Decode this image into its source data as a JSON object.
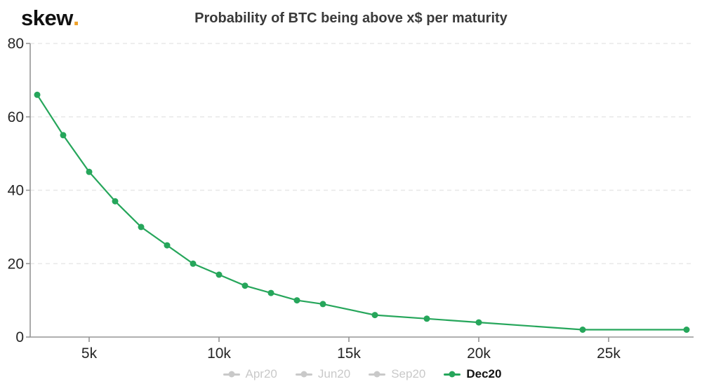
{
  "header": {
    "logo_text": "skew",
    "logo_dot": ".",
    "title": "Probability of BTC being above x$ per maturity"
  },
  "chart_data": {
    "type": "line",
    "title": "Probability of BTC being above x$ per maturity",
    "xlabel": "",
    "ylabel": "",
    "grid": "horizontal-dashed",
    "legend_position": "bottom-center",
    "x_axis": {
      "min": 2730,
      "max": 28270,
      "ticks": [
        {
          "value": 5000,
          "label": "5k"
        },
        {
          "value": 10000,
          "label": "10k"
        },
        {
          "value": 15000,
          "label": "15k"
        },
        {
          "value": 20000,
          "label": "20k"
        },
        {
          "value": 25000,
          "label": "25k"
        }
      ]
    },
    "y_axis": {
      "min": 0,
      "max": 80,
      "ticks": [
        {
          "value": 0,
          "label": "0"
        },
        {
          "value": 20,
          "label": "20"
        },
        {
          "value": 40,
          "label": "40"
        },
        {
          "value": 60,
          "label": "60"
        },
        {
          "value": 80,
          "label": "80"
        }
      ]
    },
    "series": [
      {
        "name": "Apr20",
        "enabled": false,
        "color": "#c9c9c9",
        "data": []
      },
      {
        "name": "Jun20",
        "enabled": false,
        "color": "#c9c9c9",
        "data": []
      },
      {
        "name": "Sep20",
        "enabled": false,
        "color": "#c9c9c9",
        "data": []
      },
      {
        "name": "Dec20",
        "enabled": true,
        "color": "#26a65b",
        "data": [
          [
            3000,
            66
          ],
          [
            4000,
            55
          ],
          [
            5000,
            45
          ],
          [
            6000,
            37
          ],
          [
            7000,
            30
          ],
          [
            8000,
            25
          ],
          [
            9000,
            20
          ],
          [
            10000,
            17
          ],
          [
            11000,
            14
          ],
          [
            12000,
            12
          ],
          [
            13000,
            10
          ],
          [
            14000,
            9
          ],
          [
            16000,
            6
          ],
          [
            18000,
            5
          ],
          [
            20000,
            4
          ],
          [
            24000,
            2
          ],
          [
            28000,
            2
          ]
        ]
      }
    ],
    "colors": {
      "accent_green": "#26a65b",
      "logo_dot_orange": "#efa22a",
      "axis": "#959595",
      "grid": "#e8e8e8",
      "tick_label": "#262626",
      "legend_disabled": "#c9c9c9",
      "legend_active_text": "#141414"
    }
  }
}
